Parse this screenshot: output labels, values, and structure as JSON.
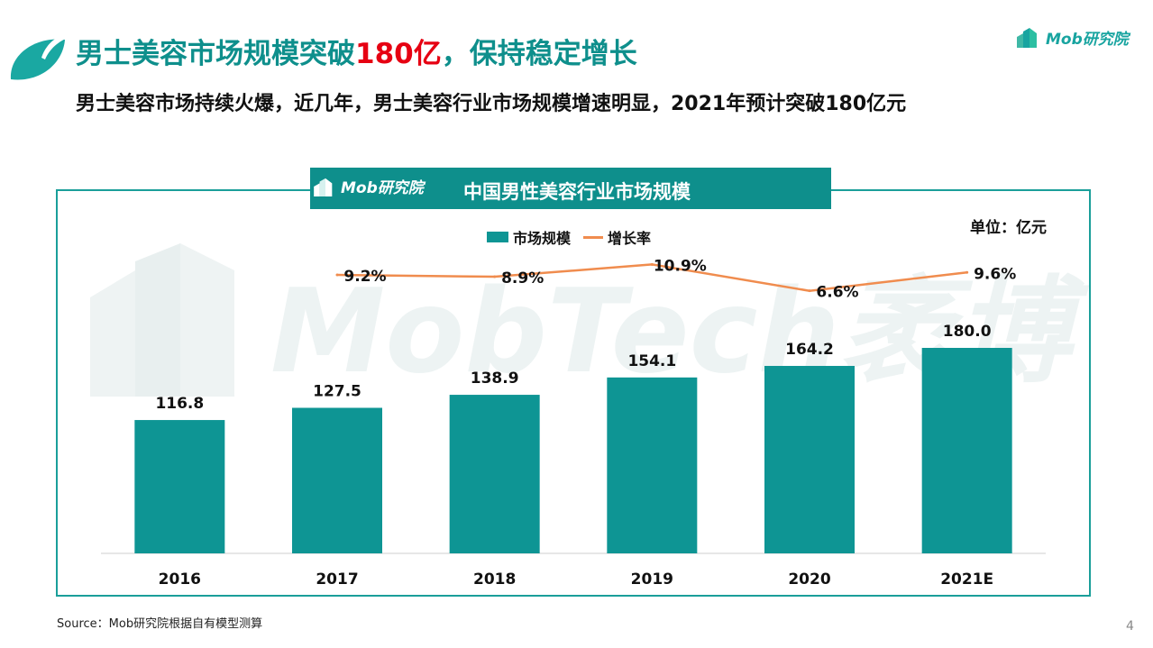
{
  "header": {
    "title_main": "男士美容市场规模突破",
    "title_highlight": "180亿",
    "title_tail": "，保持稳定增长",
    "subtitle": "男士美容市场持续火爆，近几年，男士美容行业市场规模增速明显，2021年预计突破180亿元",
    "brand": "Mob研究院"
  },
  "chart_banner": {
    "brand": "Mob研究院",
    "title": "中国男性美容行业市场规模"
  },
  "watermark": "MobTech袤博",
  "unit_label": "单位：亿元",
  "footer": {
    "source": "Source：Mob研究院根据自有模型测算",
    "page_number": "4"
  },
  "colors": {
    "accent": "#0e8f8c",
    "bar": "#0e9594",
    "line": "#f08c4e",
    "highlight": "#e60012"
  },
  "chart_data": {
    "type": "bar",
    "title": "中国男性美容行业市场规模",
    "categories": [
      "2016",
      "2017",
      "2018",
      "2019",
      "2020",
      "2021E"
    ],
    "series": [
      {
        "name": "市场规模",
        "type": "bar",
        "values": [
          116.8,
          127.5,
          138.9,
          154.1,
          164.2,
          180.0
        ],
        "labels": [
          "116.8",
          "127.5",
          "138.9",
          "154.1",
          "164.2",
          "180.0"
        ]
      },
      {
        "name": "增长率",
        "type": "line",
        "values": [
          null,
          9.2,
          8.9,
          10.9,
          6.6,
          9.6
        ],
        "labels": [
          "",
          "9.2%",
          "8.9%",
          "10.9%",
          "6.6%",
          "9.6%"
        ]
      }
    ],
    "ylim": [
      0,
      180
    ],
    "legend": "top"
  }
}
